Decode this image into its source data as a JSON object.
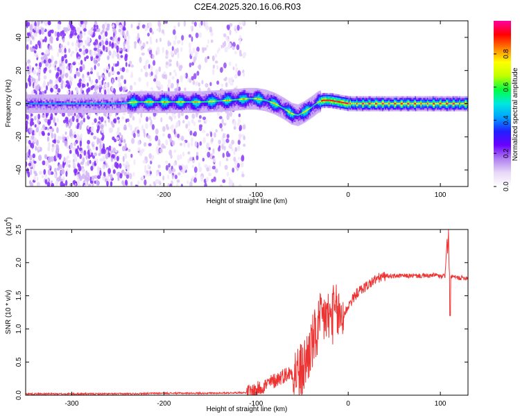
{
  "title": "C2E4.2025.320.16.06.R03",
  "chart_data": [
    {
      "type": "heatmap",
      "name": "spectrogram",
      "xlabel": "Height of straight line (km)",
      "ylabel": "Frequency (Hz)",
      "xlim": [
        -350,
        130
      ],
      "ylim": [
        -50,
        50
      ],
      "x_ticks": [
        -300,
        -200,
        -100,
        0,
        100
      ],
      "y_ticks": [
        -40,
        -20,
        0,
        20,
        40
      ],
      "colorbar": {
        "label": "Normalized spectral amplitude",
        "range": [
          0,
          1
        ],
        "ticks": [
          "0.0",
          "0.2",
          "0.4",
          "0.6",
          "0.8"
        ],
        "tick_values": [
          0.0,
          0.2,
          0.4,
          0.6,
          0.8
        ],
        "colors": [
          "#ffffff",
          "#e8d8f8",
          "#b080f0",
          "#6a00ff",
          "#2020ff",
          "#00a0ff",
          "#00e8e0",
          "#00ff40",
          "#c0ff00",
          "#ffff00",
          "#ff8000",
          "#ff0000",
          "#ff00a0"
        ]
      },
      "ridge": {
        "x": [
          -350,
          -300,
          -250,
          -230,
          -200,
          -160,
          -130,
          -110,
          -100,
          -90,
          -80,
          -70,
          -62,
          -55,
          -48,
          -40,
          -33,
          -28,
          -20,
          -10,
          0,
          50,
          100,
          130
        ],
        "y": [
          0,
          0,
          0,
          1,
          1,
          1,
          2,
          3,
          3,
          2,
          0,
          -3,
          -6,
          -7,
          -5,
          -2,
          1,
          2,
          2,
          1,
          0,
          0,
          0,
          0
        ]
      }
    },
    {
      "type": "line",
      "name": "snr",
      "xlabel": "Height of straight line (km)",
      "ylabel": "SNR (10 * v/v)",
      "y_multiplier": "(x10",
      "y_multiplier_exp": "4",
      "y_multiplier_close": ")",
      "xlim": [
        -350,
        130
      ],
      "ylim": [
        0,
        2.5
      ],
      "x_ticks": [
        -300,
        -200,
        -100,
        0,
        100
      ],
      "y_ticks": [
        0.0,
        0.5,
        1.0,
        1.5,
        2.0,
        2.5
      ],
      "y_tick_labels": [
        "0.0",
        "0.5",
        "1.0",
        "1.5",
        "2.0",
        "2.5"
      ],
      "color": "#ee3333",
      "x": [
        -350,
        -250,
        -200,
        -150,
        -110,
        -100,
        -90,
        -80,
        -70,
        -60,
        -50,
        -45,
        -40,
        -35,
        -30,
        -25,
        -20,
        -15,
        -10,
        -5,
        0,
        5,
        10,
        20,
        30,
        40,
        50,
        60,
        70,
        80,
        90,
        95,
        100,
        105,
        108,
        110,
        115,
        120,
        130
      ],
      "y": [
        0.02,
        0.02,
        0.03,
        0.03,
        0.04,
        0.08,
        0.15,
        0.22,
        0.3,
        0.35,
        0.35,
        0.55,
        0.75,
        0.9,
        1.1,
        1.2,
        1.15,
        1.25,
        1.2,
        1.2,
        1.35,
        1.45,
        1.55,
        1.65,
        1.75,
        1.8,
        1.8,
        1.8,
        1.8,
        1.8,
        1.8,
        1.82,
        1.78,
        1.8,
        2.5,
        1.8,
        1.78,
        1.77,
        1.77
      ]
    }
  ]
}
